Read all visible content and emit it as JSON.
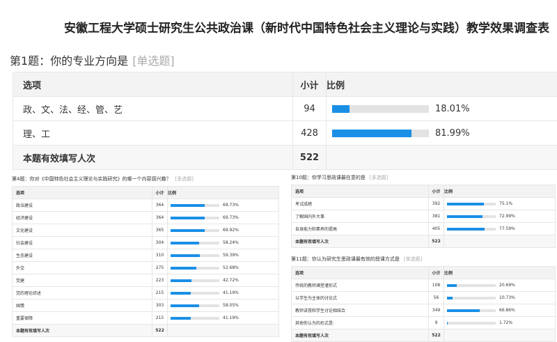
{
  "title": "安徽工程大学硕士研究生公共政治课（新时代中国特色社会主义理论与实践）教学效果调查表",
  "headers": {
    "option": "选项",
    "count": "小计",
    "ratio": "比例"
  },
  "total_label": "本题有效填写人次",
  "bar_color": "#1a8fe6",
  "questions": [
    {
      "id": "q1",
      "title": "第1题：你的专业方向是",
      "tag": "[单选题]",
      "total": "522",
      "rows": [
        {
          "option": "政、文、法、经、管、艺",
          "count": "94",
          "pct": "18.01%"
        },
        {
          "option": "理、工",
          "count": "428",
          "pct": "81.99%"
        }
      ]
    },
    {
      "id": "q4",
      "title": "第4题：你对《中国特色社会主义理论与实践研究》的哪一个内容感兴趣？",
      "tag": "[多选题]",
      "total": "522",
      "rows": [
        {
          "option": "政治建设",
          "count": "364",
          "pct": "69.73%"
        },
        {
          "option": "经济建设",
          "count": "364",
          "pct": "69.73%"
        },
        {
          "option": "文化建设",
          "count": "365",
          "pct": "69.92%"
        },
        {
          "option": "社会建设",
          "count": "304",
          "pct": "58.24%"
        },
        {
          "option": "生态建设",
          "count": "310",
          "pct": "59.39%"
        },
        {
          "option": "外交",
          "count": "275",
          "pct": "52.68%"
        },
        {
          "option": "党建",
          "count": "223",
          "pct": "42.72%"
        },
        {
          "option": "党的理论综述",
          "count": "215",
          "pct": "41.19%"
        },
        {
          "option": "国情",
          "count": "303",
          "pct": "58.05%"
        },
        {
          "option": "重要保障",
          "count": "215",
          "pct": "41.19%"
        }
      ]
    },
    {
      "id": "q10",
      "title": "第10题：你学习思政课最在意的是",
      "tag": "[多选题]",
      "total": "522",
      "rows": [
        {
          "option": "考试成绩",
          "count": "392",
          "pct": "75.1%"
        },
        {
          "option": "了解国内外大事",
          "count": "381",
          "pct": "72.99%"
        },
        {
          "option": "自身能力和素养的提高",
          "count": "405",
          "pct": "77.59%"
        }
      ]
    },
    {
      "id": "q11",
      "title": "第11题：你认为研究生思政课最有效的授课方式是",
      "tag": "[单选题]",
      "total": "522",
      "rows": [
        {
          "option": "传统的教师满堂灌形式",
          "count": "108",
          "pct": "20.69%"
        },
        {
          "option": "以学生为主体的讨论式",
          "count": "56",
          "pct": "10.73%"
        },
        {
          "option": "教师讲授和学生讨论相结合",
          "count": "349",
          "pct": "66.86%"
        },
        {
          "option": "其他你认为的形式是:",
          "count": "9",
          "pct": "1.72%"
        }
      ]
    }
  ]
}
